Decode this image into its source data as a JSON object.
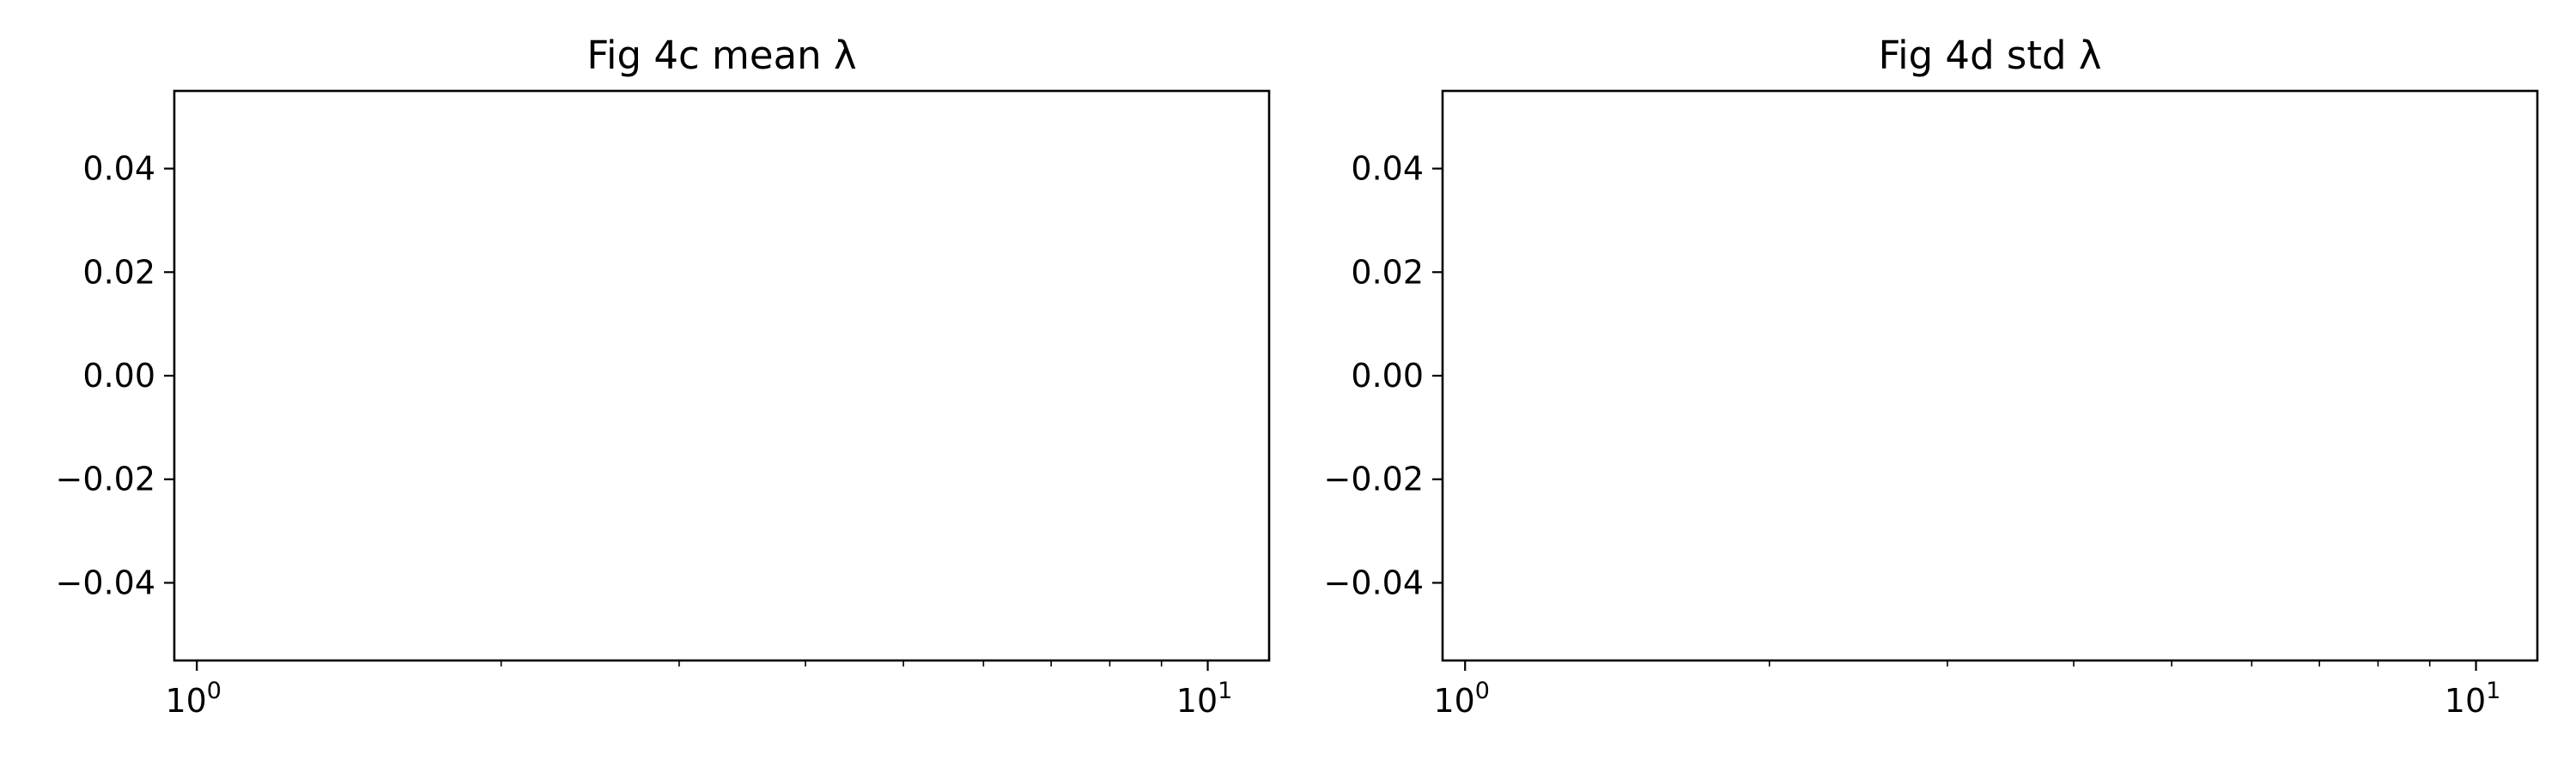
{
  "chart_data": [
    {
      "type": "line",
      "title": "Fig 4c mean λ",
      "xlabel": "",
      "ylabel": "",
      "xscale": "log",
      "xlim": [
        0.95,
        11.5
      ],
      "ylim": [
        -0.055,
        0.055
      ],
      "x_major_ticks": [
        {
          "value": 1,
          "base": "10",
          "exp": "0"
        },
        {
          "value": 10,
          "base": "10",
          "exp": "1"
        }
      ],
      "x_minor_ticks": [
        2,
        3,
        4,
        5,
        6,
        7,
        8,
        9
      ],
      "y_ticks": [
        {
          "value": 0.04,
          "label": "0.04"
        },
        {
          "value": 0.02,
          "label": "0.02"
        },
        {
          "value": 0.0,
          "label": "0.00"
        },
        {
          "value": -0.02,
          "label": "−0.02"
        },
        {
          "value": -0.04,
          "label": "−0.04"
        }
      ],
      "series": [],
      "grid": false
    },
    {
      "type": "line",
      "title": "Fig 4d std λ",
      "xlabel": "",
      "ylabel": "",
      "xscale": "log",
      "xlim": [
        0.95,
        11.5
      ],
      "ylim": [
        -0.055,
        0.055
      ],
      "x_major_ticks": [
        {
          "value": 1,
          "base": "10",
          "exp": "0"
        },
        {
          "value": 10,
          "base": "10",
          "exp": "1"
        }
      ],
      "x_minor_ticks": [
        2,
        3,
        4,
        5,
        6,
        7,
        8,
        9
      ],
      "y_ticks": [
        {
          "value": 0.04,
          "label": "0.04"
        },
        {
          "value": 0.02,
          "label": "0.02"
        },
        {
          "value": 0.0,
          "label": "0.00"
        },
        {
          "value": -0.02,
          "label": "−0.02"
        },
        {
          "value": -0.04,
          "label": "−0.04"
        }
      ],
      "series": [],
      "grid": false
    }
  ]
}
